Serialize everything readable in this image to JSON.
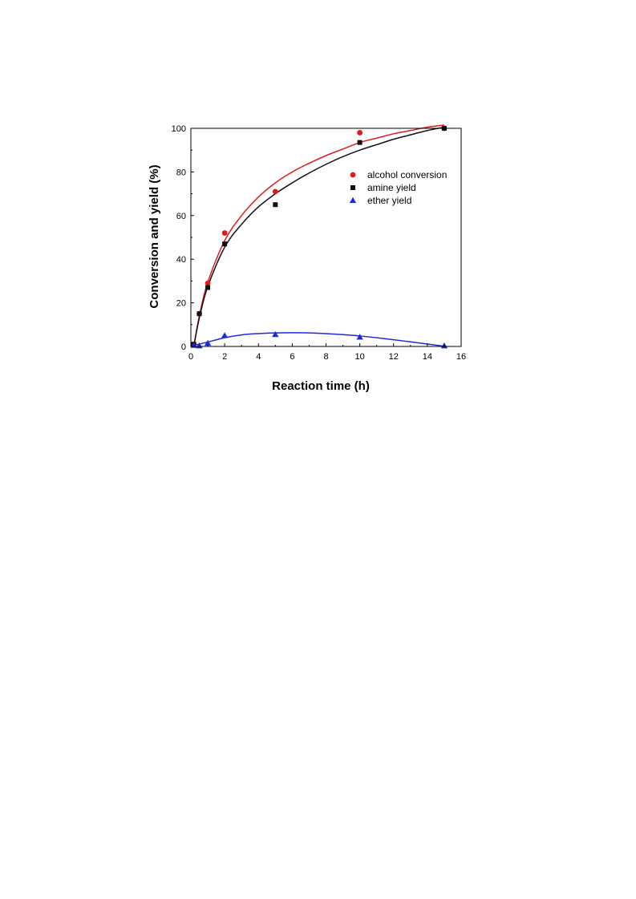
{
  "chart_data": {
    "type": "scatter",
    "xlabel": "Reaction time (h)",
    "ylabel": "Conversion and yield (%)",
    "xlim": [
      0,
      16
    ],
    "ylim": [
      0,
      100
    ],
    "xticks": [
      0,
      2,
      4,
      6,
      8,
      10,
      12,
      14,
      16
    ],
    "yticks": [
      0,
      20,
      40,
      60,
      80,
      100
    ],
    "grid": false,
    "legend_position": "top-right",
    "series": [
      {
        "name": "alcohol conversion",
        "marker": "circle",
        "color": "#e01b1b",
        "points": [
          [
            0.17,
            1
          ],
          [
            0.5,
            15
          ],
          [
            1,
            29
          ],
          [
            2,
            52
          ],
          [
            5,
            71
          ],
          [
            10,
            98
          ],
          [
            15,
            100
          ]
        ],
        "fit": [
          [
            0.17,
            0
          ],
          [
            0.5,
            14
          ],
          [
            1,
            29.5
          ],
          [
            2,
            48.5
          ],
          [
            3,
            60
          ],
          [
            4,
            68.5
          ],
          [
            5,
            75
          ],
          [
            6,
            80
          ],
          [
            7,
            84
          ],
          [
            8,
            87.5
          ],
          [
            9,
            90.5
          ],
          [
            10,
            93.5
          ],
          [
            11,
            95.5
          ],
          [
            12,
            97.5
          ],
          [
            13,
            99
          ],
          [
            14,
            100.5
          ],
          [
            15,
            101.5
          ]
        ]
      },
      {
        "name": "amine yield",
        "marker": "square",
        "color": "#111111",
        "points": [
          [
            0.17,
            1
          ],
          [
            0.5,
            15
          ],
          [
            1,
            27
          ],
          [
            2,
            47
          ],
          [
            5,
            65
          ],
          [
            10,
            93.5
          ],
          [
            15,
            100
          ]
        ],
        "fit": [
          [
            0.17,
            0
          ],
          [
            0.5,
            13
          ],
          [
            1,
            27.5
          ],
          [
            2,
            45.5
          ],
          [
            3,
            56
          ],
          [
            4,
            64
          ],
          [
            5,
            70
          ],
          [
            6,
            75
          ],
          [
            7,
            79.5
          ],
          [
            8,
            83.5
          ],
          [
            9,
            87
          ],
          [
            10,
            90
          ],
          [
            11,
            92.5
          ],
          [
            12,
            95
          ],
          [
            13,
            97
          ],
          [
            14,
            99
          ],
          [
            15,
            100.5
          ]
        ]
      },
      {
        "name": "ether yield",
        "marker": "triangle",
        "color": "#1f2bd6",
        "points": [
          [
            0.17,
            0.5
          ],
          [
            0.5,
            0.3
          ],
          [
            1,
            1.5
          ],
          [
            2,
            5
          ],
          [
            5,
            5.5
          ],
          [
            10,
            4.3
          ],
          [
            15,
            0.3
          ]
        ],
        "fit": [
          [
            0.17,
            0.5
          ],
          [
            1,
            2
          ],
          [
            2,
            4
          ],
          [
            3,
            5.3
          ],
          [
            4,
            5.9
          ],
          [
            5,
            6.2
          ],
          [
            6,
            6.3
          ],
          [
            7,
            6.2
          ],
          [
            8,
            5.9
          ],
          [
            9,
            5.4
          ],
          [
            10,
            4.8
          ],
          [
            11,
            4.0
          ],
          [
            12,
            3.1
          ],
          [
            13,
            2.1
          ],
          [
            14,
            1.1
          ],
          [
            15,
            0.1
          ]
        ]
      }
    ]
  }
}
